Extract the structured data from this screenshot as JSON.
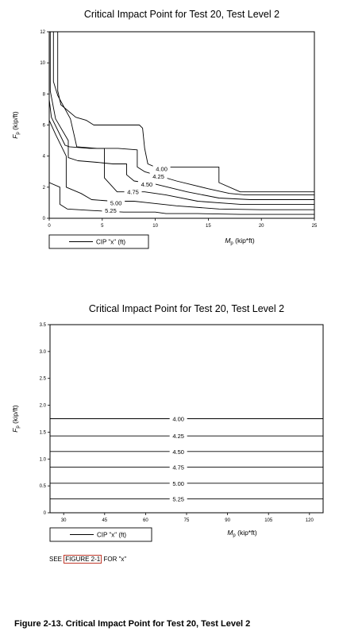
{
  "chart_data": [
    {
      "type": "line",
      "title": "Critical Impact Point for Test 20, Test Level 2",
      "xlabel": "Mp (kip*ft)",
      "xlabel_main": "M",
      "xlabel_sub": "p",
      "xlabel_unit": " (kip*ft)",
      "ylabel": "Fp (kip/ft)",
      "ylabel_main": "F",
      "ylabel_sub": "p",
      "ylabel_unit": " (kip/ft)",
      "xlim": [
        0,
        25
      ],
      "ylim": [
        0,
        12
      ],
      "xticks": [
        0,
        5,
        10,
        15,
        20,
        25
      ],
      "yticks": [
        0,
        2,
        4,
        6,
        8,
        10,
        12
      ],
      "legend_label": "CIP \"x\" (ft)",
      "legend_position": "bottom-left, below plot",
      "series": [
        {
          "name": "4.00",
          "x": [
            0.8,
            0.8,
            1.1,
            2.5,
            3.5,
            4.2,
            8.5,
            8.8,
            9.0,
            9.3,
            10,
            16,
            16,
            18,
            25
          ],
          "y": [
            12.2,
            8.2,
            7.3,
            6.5,
            6.3,
            6.0,
            6.0,
            5.8,
            4.5,
            3.5,
            3.3,
            3.3,
            2.3,
            1.7,
            1.7
          ]
        },
        {
          "name": "4.25",
          "x": [
            0.4,
            0.4,
            0.8,
            2.0,
            2.6,
            4.5,
            6.5,
            8.3,
            8.3,
            9.0,
            12,
            15,
            17,
            18.5,
            25
          ],
          "y": [
            12.2,
            8.8,
            7.9,
            6.4,
            4.6,
            4.5,
            4.5,
            4.4,
            3.3,
            3.0,
            2.4,
            1.9,
            1.6,
            1.5,
            1.5
          ]
        },
        {
          "name": "4.50",
          "x": [
            0.1,
            0.1,
            0.6,
            1.8,
            1.8,
            2.7,
            4.5,
            6.0,
            7.3,
            7.3,
            8.0,
            10,
            13,
            16,
            19,
            25
          ],
          "y": [
            12.2,
            8.2,
            6.4,
            5.0,
            3.9,
            3.7,
            3.6,
            3.5,
            3.5,
            2.8,
            2.4,
            2.2,
            1.7,
            1.3,
            1.2,
            1.2
          ]
        },
        {
          "name": "4.75",
          "x": [
            -0.1,
            -0.1,
            0.2,
            1.5,
            1.9,
            3.8,
            5.2,
            5.2,
            6.4,
            9,
            11,
            14,
            18,
            25
          ],
          "y": [
            12.2,
            8.2,
            6.5,
            4.7,
            4.6,
            4.5,
            4.5,
            2.6,
            1.7,
            1.7,
            1.5,
            1.1,
            0.9,
            0.9
          ]
        },
        {
          "name": "5.00",
          "x": [
            0,
            0.6,
            1.6,
            1.6,
            3.0,
            4.0,
            6.0,
            8.0,
            12,
            16,
            20,
            25
          ],
          "y": [
            6.3,
            5.4,
            4.0,
            2.0,
            1.6,
            1.2,
            1.1,
            1.1,
            0.8,
            0.6,
            0.55,
            0.55
          ]
        },
        {
          "name": "5.25",
          "x": [
            0,
            1.0,
            1.0,
            1.7,
            4.0,
            7.0,
            10,
            11,
            14,
            18,
            25
          ],
          "y": [
            2.3,
            2.0,
            0.9,
            0.6,
            0.5,
            0.4,
            0.4,
            0.3,
            0.3,
            0.25,
            0.25
          ]
        }
      ],
      "contour_labels": [
        {
          "text": "4.00",
          "x": 10.6,
          "y": 3.2
        },
        {
          "text": "4.25",
          "x": 10.3,
          "y": 2.7
        },
        {
          "text": "4.50",
          "x": 9.2,
          "y": 2.2
        },
        {
          "text": "4.75",
          "x": 7.9,
          "y": 1.7
        },
        {
          "text": "5.00",
          "x": 6.3,
          "y": 1.0
        },
        {
          "text": "5.25",
          "x": 5.8,
          "y": 0.5
        }
      ]
    },
    {
      "type": "line",
      "title": "Critical Impact Point for Test 20, Test Level 2",
      "xlabel": "Mp (kip*ft)",
      "xlabel_main": "M",
      "xlabel_sub": "p",
      "xlabel_unit": " (kip*ft)",
      "ylabel": "Fp (kip/ft)",
      "ylabel_main": "F",
      "ylabel_sub": "p",
      "ylabel_unit": " (kip/ft)",
      "xlim": [
        25,
        125
      ],
      "ylim": [
        0,
        3.5
      ],
      "xticks": [
        30,
        45,
        60,
        75,
        90,
        105,
        120
      ],
      "yticks": [
        0,
        0.5,
        1.0,
        1.5,
        2.0,
        2.5,
        3.0,
        3.5
      ],
      "ytick_labels": [
        "0",
        "0.5",
        "1.0",
        "1.5",
        "2.0",
        "2.5",
        "3.0",
        "3.5"
      ],
      "legend_label": "CIP \"x\" (ft)",
      "legend_position": "bottom-left, below plot",
      "series": [
        {
          "name": "4.00",
          "x": [
            25,
            125
          ],
          "y": [
            1.75,
            1.75
          ]
        },
        {
          "name": "4.25",
          "x": [
            25,
            125
          ],
          "y": [
            1.43,
            1.43
          ]
        },
        {
          "name": "4.50",
          "x": [
            25,
            125
          ],
          "y": [
            1.14,
            1.14
          ]
        },
        {
          "name": "4.75",
          "x": [
            25,
            125
          ],
          "y": [
            0.85,
            0.85
          ]
        },
        {
          "name": "5.00",
          "x": [
            25,
            125
          ],
          "y": [
            0.55,
            0.55
          ]
        },
        {
          "name": "5.25",
          "x": [
            25,
            125
          ],
          "y": [
            0.26,
            0.26
          ]
        }
      ],
      "contour_labels": [
        {
          "text": "4.00",
          "x": 72,
          "y": 1.75
        },
        {
          "text": "4.25",
          "x": 72,
          "y": 1.43
        },
        {
          "text": "4.50",
          "x": 72,
          "y": 1.14
        },
        {
          "text": "4.75",
          "x": 72,
          "y": 0.85
        },
        {
          "text": "5.00",
          "x": 72,
          "y": 0.55
        },
        {
          "text": "5.25",
          "x": 72,
          "y": 0.26
        }
      ]
    }
  ],
  "note": {
    "prefix": "SEE ",
    "link": "FIGURE 2-1",
    "suffix": " FOR \"x\""
  },
  "caption": "Figure 2-13. Critical Impact Point for Test 20, Test Level 2"
}
